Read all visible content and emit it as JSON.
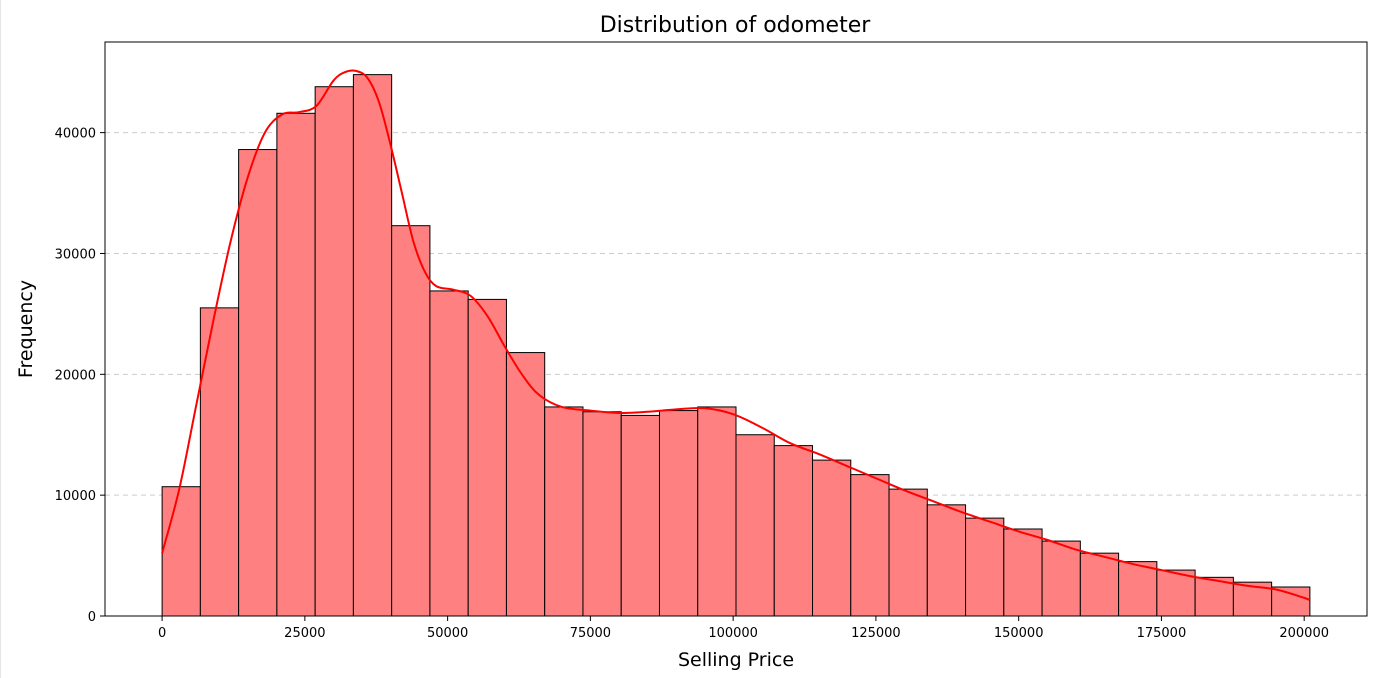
{
  "chart_data": {
    "type": "bar",
    "subtype": "histogram-with-kde",
    "title": "Distribution of odometer",
    "xlabel": "Selling Price",
    "ylabel": "Frequency",
    "xlim": [
      -10000,
      211000
    ],
    "ylim": [
      0,
      47500
    ],
    "x_ticks": [
      0,
      25000,
      50000,
      75000,
      100000,
      125000,
      150000,
      175000,
      200000
    ],
    "x_tick_labels": [
      "0",
      "25000",
      "50000",
      "75000",
      "100000",
      "125000",
      "150000",
      "175000",
      "200000"
    ],
    "y_ticks": [
      0,
      10000,
      20000,
      30000,
      40000
    ],
    "y_tick_labels": [
      "0",
      "10000",
      "20000",
      "30000",
      "40000"
    ],
    "grid": "y-dashed",
    "bar_color": "#ff8080",
    "bar_edge_color": "#000000",
    "kde_color": "#ff0000",
    "bins": {
      "start": 0,
      "width": 6700,
      "counts": [
        10700,
        25500,
        38600,
        41600,
        43800,
        44800,
        32300,
        26900,
        26200,
        21800,
        17300,
        16900,
        16600,
        17000,
        17300,
        15000,
        14100,
        12900,
        11700,
        10500,
        9200,
        8100,
        7200,
        6200,
        5200,
        4500,
        3800,
        3200,
        2800,
        2400
      ]
    },
    "kde": {
      "x": [
        0,
        3000,
        6000,
        9000,
        12000,
        15000,
        18000,
        21000,
        24000,
        27000,
        30000,
        32000,
        34000,
        36000,
        38000,
        40000,
        42000,
        44000,
        46000,
        48000,
        51000,
        54000,
        57000,
        60000,
        63000,
        66000,
        70000,
        75000,
        80000,
        85000,
        90000,
        95000,
        100000,
        105000,
        110000,
        115000,
        120000,
        125000,
        130000,
        135000,
        140000,
        145000,
        150000,
        155000,
        160000,
        165000,
        170000,
        175000,
        180000,
        185000,
        190000,
        195000,
        200000,
        201000
      ],
      "y": [
        5200,
        10500,
        17500,
        24500,
        31000,
        36300,
        40000,
        41500,
        41700,
        42200,
        44300,
        45000,
        45100,
        44500,
        42500,
        39000,
        35000,
        31000,
        28500,
        27300,
        27000,
        26500,
        24800,
        22300,
        20000,
        18300,
        17300,
        17000,
        16800,
        16900,
        17100,
        17200,
        16700,
        15600,
        14300,
        13400,
        12400,
        11400,
        10400,
        9500,
        8600,
        7800,
        7000,
        6300,
        5500,
        4900,
        4300,
        3800,
        3300,
        2900,
        2500,
        2200,
        1500,
        1300
      ]
    }
  }
}
